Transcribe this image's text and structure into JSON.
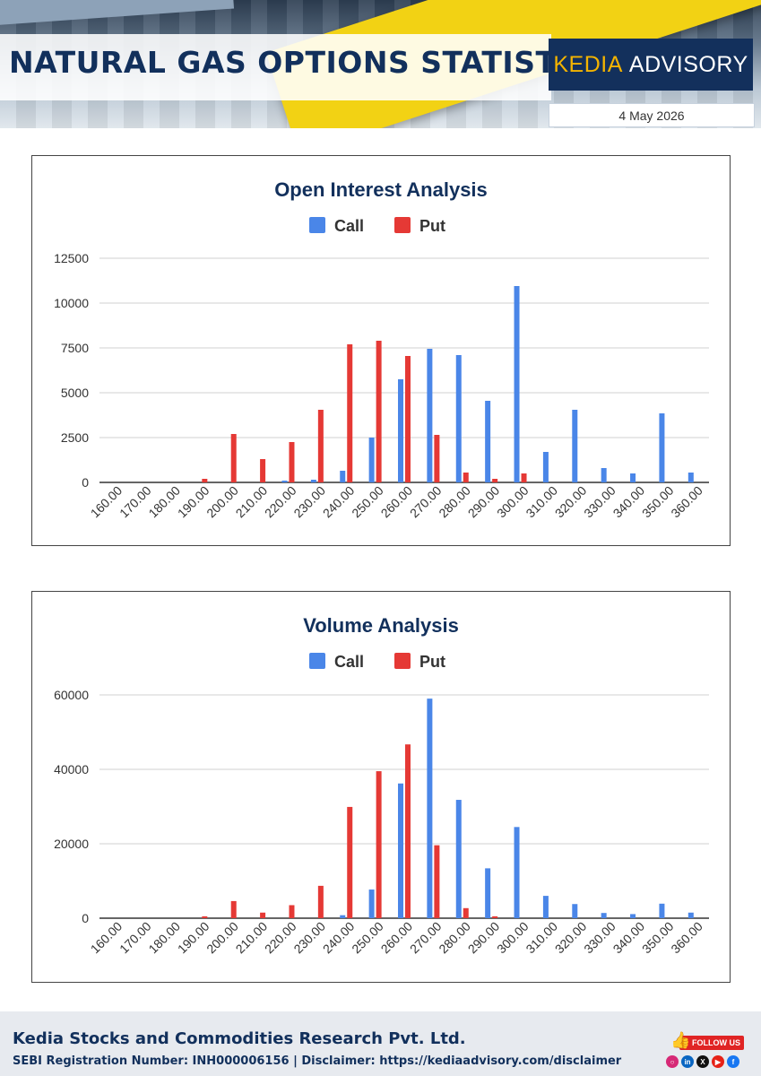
{
  "header": {
    "title": "NATURAL GAS OPTIONS STATISTICS",
    "brand_part1": "KEDIA",
    "brand_part2": "ADVISORY",
    "date": "4 May 2026"
  },
  "footer": {
    "company": "Kedia Stocks and Commodities Research Pvt. Ltd.",
    "registration": "SEBI Registration Number: INH000006156 | Disclaimer: https://kediaadvisory.com/disclaimer",
    "follow_label": "FOLLOW US",
    "socials": [
      "instagram-icon",
      "linkedin-icon",
      "x-icon",
      "youtube-icon",
      "facebook-icon"
    ]
  },
  "colors": {
    "call": "#4a86e8",
    "put": "#e53935",
    "title": "#12305c",
    "brand_bg": "#13305c",
    "brand_accent": "#f4b400"
  },
  "chart_data": [
    {
      "type": "bar",
      "title": "Open Interest Analysis",
      "categories": [
        "160.00",
        "170.00",
        "180.00",
        "190.00",
        "200.00",
        "210.00",
        "220.00",
        "230.00",
        "240.00",
        "250.00",
        "260.00",
        "270.00",
        "280.00",
        "290.00",
        "300.00",
        "310.00",
        "320.00",
        "330.00",
        "340.00",
        "350.00",
        "360.00"
      ],
      "series": [
        {
          "name": "Call",
          "values": [
            0,
            0,
            0,
            0,
            0,
            0,
            100,
            150,
            650,
            2500,
            5750,
            7450,
            7100,
            4550,
            10950,
            1700,
            4050,
            800,
            500,
            3850,
            550
          ]
        },
        {
          "name": "Put",
          "values": [
            0,
            0,
            0,
            200,
            2700,
            1300,
            2250,
            4050,
            7700,
            7900,
            7050,
            2650,
            550,
            200,
            500,
            0,
            0,
            0,
            0,
            0,
            0
          ]
        }
      ],
      "ylim": [
        0,
        12500
      ],
      "yticks": [
        0,
        2500,
        5000,
        7500,
        10000,
        12500
      ],
      "legend": "top",
      "grid": true
    },
    {
      "type": "bar",
      "title": "Volume Analysis",
      "categories": [
        "160.00",
        "170.00",
        "180.00",
        "190.00",
        "200.00",
        "210.00",
        "220.00",
        "230.00",
        "240.00",
        "250.00",
        "260.00",
        "270.00",
        "280.00",
        "290.00",
        "300.00",
        "310.00",
        "320.00",
        "330.00",
        "340.00",
        "350.00",
        "360.00"
      ],
      "series": [
        {
          "name": "Call",
          "values": [
            0,
            0,
            0,
            0,
            0,
            0,
            0,
            0,
            800,
            7700,
            36200,
            59000,
            31800,
            13400,
            24500,
            6000,
            3800,
            1400,
            1100,
            3900,
            1500
          ]
        },
        {
          "name": "Put",
          "values": [
            0,
            0,
            0,
            500,
            4600,
            1500,
            3500,
            8700,
            29900,
            39500,
            46700,
            19600,
            2700,
            500,
            0,
            0,
            0,
            0,
            0,
            0,
            0
          ]
        }
      ],
      "ylim": [
        0,
        60000
      ],
      "yticks": [
        0,
        20000,
        40000,
        60000
      ],
      "legend": "top",
      "grid": true
    }
  ]
}
